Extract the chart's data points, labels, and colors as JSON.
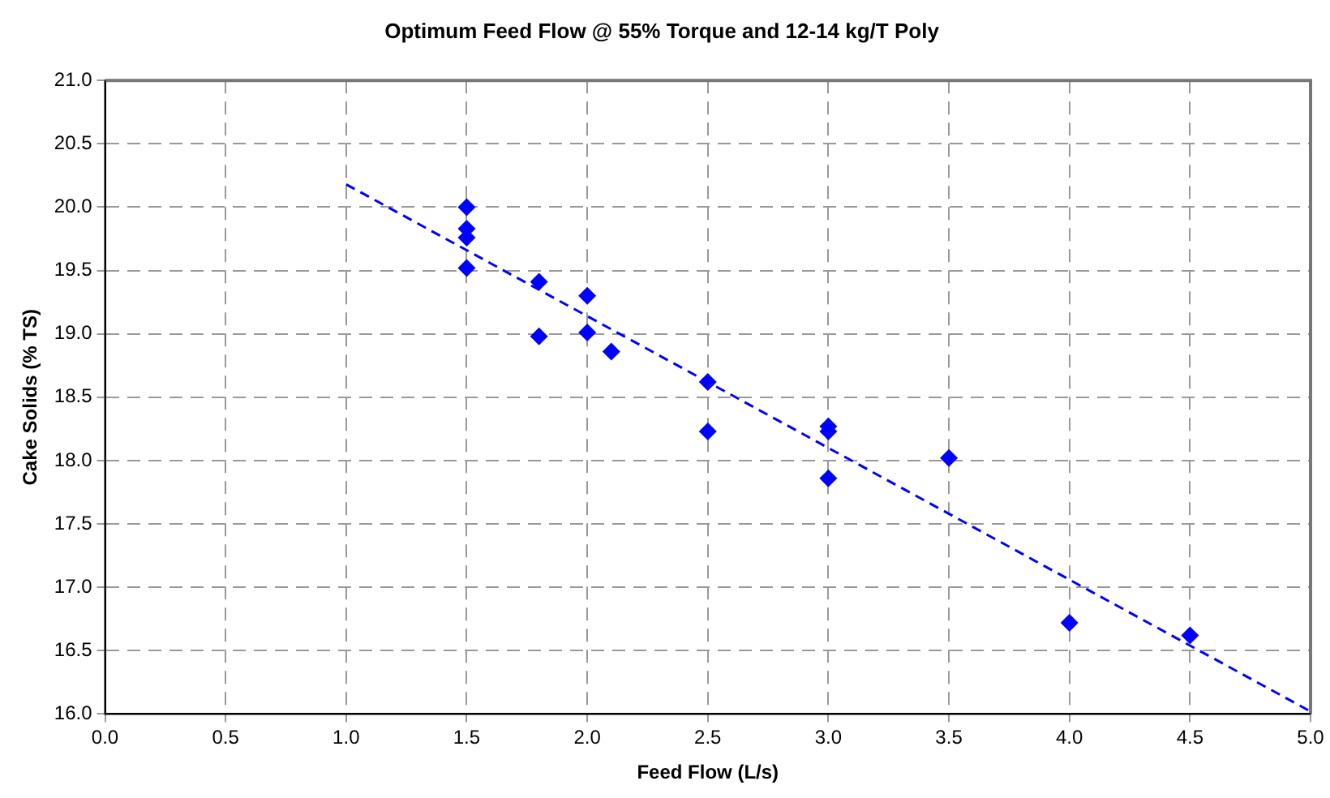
{
  "chart_data": {
    "type": "scatter",
    "title": "Optimum Feed Flow @ 55% Torque and 12-14 kg/T Poly",
    "xlabel": "Feed Flow (L/s)",
    "ylabel": "Cake Solids (% TS)",
    "xlim": [
      0,
      5
    ],
    "xticks": [
      {
        "value": 0,
        "label": "0.0"
      },
      {
        "value": 0.5,
        "label": "0.5"
      },
      {
        "value": 1,
        "label": "1.0"
      },
      {
        "value": 1.5,
        "label": "1.5"
      },
      {
        "value": 2,
        "label": "2.0"
      },
      {
        "value": 2.5,
        "label": "2.5"
      },
      {
        "value": 3,
        "label": "3.0"
      },
      {
        "value": 3.5,
        "label": "3.5"
      },
      {
        "value": 4,
        "label": "4.0"
      },
      {
        "value": 4.5,
        "label": "4.5"
      },
      {
        "value": 5,
        "label": "5.0"
      }
    ],
    "ylim": [
      16,
      21
    ],
    "yticks": [
      {
        "value": 16,
        "label": "16.0"
      },
      {
        "value": 16.5,
        "label": "16.5"
      },
      {
        "value": 17,
        "label": "17.0"
      },
      {
        "value": 17.5,
        "label": "17.5"
      },
      {
        "value": 18,
        "label": "18.0"
      },
      {
        "value": 18.5,
        "label": "18.5"
      },
      {
        "value": 19,
        "label": "19.0"
      },
      {
        "value": 19.5,
        "label": "19.5"
      },
      {
        "value": 20,
        "label": "20.0"
      },
      {
        "value": 20.5,
        "label": "20.5"
      },
      {
        "value": 21,
        "label": "21.0"
      }
    ],
    "grid": true,
    "legend": false,
    "series": [
      {
        "color": "#0000ff",
        "marker": "diamond",
        "x": [
          1.5,
          1.5,
          1.5,
          1.5,
          1.8,
          1.8,
          2.0,
          2.0,
          2.1,
          2.5,
          2.5,
          3.0,
          3.0,
          3.0,
          3.5,
          4.0,
          4.5
        ],
        "values": [
          20.0,
          19.83,
          19.76,
          19.52,
          19.41,
          18.98,
          19.3,
          19.01,
          18.86,
          18.62,
          18.23,
          18.27,
          18.23,
          17.86,
          18.02,
          16.72,
          16.62
        ]
      },
      {
        "type": "line",
        "color": "#0000ff",
        "marker": "none",
        "line_style": "dashed",
        "x": [
          1.0,
          5.0
        ],
        "values": [
          20.18,
          16.02
        ]
      }
    ]
  }
}
